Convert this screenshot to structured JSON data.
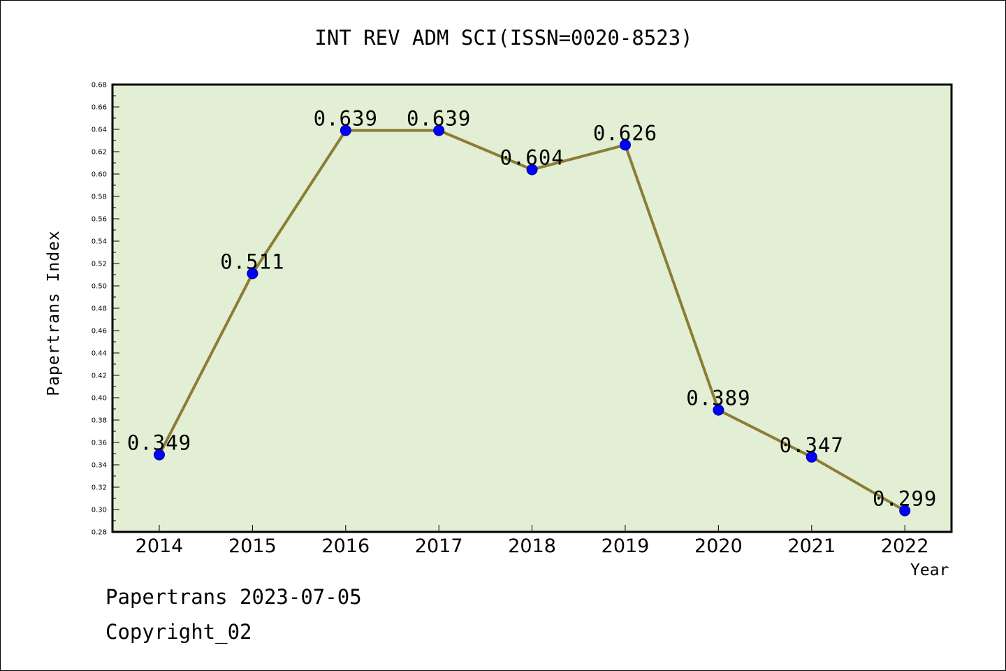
{
  "chart_data": {
    "type": "line",
    "title": "INT REV ADM SCI(ISSN=0020-8523)",
    "xlabel": "Year",
    "ylabel": "Papertrans Index",
    "categories": [
      "2014",
      "2015",
      "2016",
      "2017",
      "2018",
      "2019",
      "2020",
      "2021",
      "2022"
    ],
    "values": [
      0.349,
      0.511,
      0.639,
      0.639,
      0.604,
      0.626,
      0.389,
      0.347,
      0.299
    ],
    "data_labels": [
      "0.349",
      "0.511",
      "0.639",
      "0.639",
      "0.604",
      "0.626",
      "0.389",
      "0.347",
      "0.299"
    ],
    "ylim": [
      0.28,
      0.68
    ],
    "yticks": [
      "0.28",
      "0.30",
      "0.32",
      "0.34",
      "0.36",
      "0.38",
      "0.40",
      "0.42",
      "0.44",
      "0.46",
      "0.48",
      "0.50",
      "0.52",
      "0.54",
      "0.56",
      "0.58",
      "0.60",
      "0.62",
      "0.64",
      "0.66",
      "0.68"
    ],
    "grid": false,
    "colors": {
      "plot_background": "#e2efd5",
      "line": "#8b7d34",
      "marker": "#0000ff",
      "axis": "#000000"
    }
  },
  "footer": {
    "date_line": "Papertrans 2023-07-05",
    "copyright": "Copyright_02"
  }
}
